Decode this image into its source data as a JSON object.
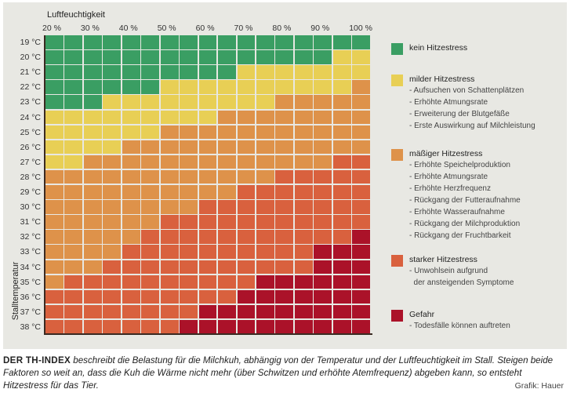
{
  "chart_data": {
    "type": "heatmap",
    "title": "",
    "xlabel": "Luftfeuchtigkeit",
    "ylabel": "Stalltemperatur",
    "x_tick_labels": [
      "20 %",
      "30 %",
      "40 %",
      "50 %",
      "60 %",
      "70 %",
      "80 %",
      "90 %",
      "100 %"
    ],
    "x_values": [
      20,
      25,
      30,
      35,
      40,
      45,
      50,
      55,
      60,
      65,
      70,
      75,
      80,
      85,
      90,
      95,
      100
    ],
    "y_labels": [
      "19 °C",
      "20 °C",
      "21 °C",
      "22 °C",
      "23 °C",
      "24 °C",
      "25 °C",
      "26 °C",
      "27 °C",
      "28 °C",
      "29 °C",
      "30 °C",
      "31 °C",
      "32 °C",
      "33 °C",
      "34 °C",
      "35 °C",
      "36 °C",
      "37 °C",
      "38 °C"
    ],
    "categories_key": {
      "0": "kein Hitzestress",
      "1": "milder Hitzestress",
      "2": "mäßiger Hitzestress",
      "3": "starker Hitzestress",
      "4": "Gefahr"
    },
    "colors": [
      "#3a9e63",
      "#e8cf55",
      "#de924a",
      "#d9613e",
      "#ab1229"
    ],
    "rows": [
      [
        0,
        0,
        0,
        0,
        0,
        0,
        0,
        0,
        0,
        0,
        0,
        0,
        0,
        0,
        0,
        0,
        0
      ],
      [
        0,
        0,
        0,
        0,
        0,
        0,
        0,
        0,
        0,
        0,
        0,
        0,
        0,
        0,
        0,
        1,
        1
      ],
      [
        0,
        0,
        0,
        0,
        0,
        0,
        0,
        0,
        0,
        0,
        1,
        1,
        1,
        1,
        1,
        1,
        1
      ],
      [
        0,
        0,
        0,
        0,
        0,
        0,
        1,
        1,
        1,
        1,
        1,
        1,
        1,
        1,
        1,
        1,
        2
      ],
      [
        0,
        0,
        0,
        1,
        1,
        1,
        1,
        1,
        1,
        1,
        1,
        1,
        2,
        2,
        2,
        2,
        2
      ],
      [
        1,
        1,
        1,
        1,
        1,
        1,
        1,
        1,
        1,
        2,
        2,
        2,
        2,
        2,
        2,
        2,
        2
      ],
      [
        1,
        1,
        1,
        1,
        1,
        1,
        2,
        2,
        2,
        2,
        2,
        2,
        2,
        2,
        2,
        2,
        2
      ],
      [
        1,
        1,
        1,
        1,
        2,
        2,
        2,
        2,
        2,
        2,
        2,
        2,
        2,
        2,
        2,
        2,
        2
      ],
      [
        1,
        1,
        2,
        2,
        2,
        2,
        2,
        2,
        2,
        2,
        2,
        2,
        2,
        2,
        2,
        3,
        3
      ],
      [
        2,
        2,
        2,
        2,
        2,
        2,
        2,
        2,
        2,
        2,
        2,
        2,
        3,
        3,
        3,
        3,
        3
      ],
      [
        2,
        2,
        2,
        2,
        2,
        2,
        2,
        2,
        2,
        2,
        3,
        3,
        3,
        3,
        3,
        3,
        3
      ],
      [
        2,
        2,
        2,
        2,
        2,
        2,
        2,
        2,
        3,
        3,
        3,
        3,
        3,
        3,
        3,
        3,
        3
      ],
      [
        2,
        2,
        2,
        2,
        2,
        2,
        3,
        3,
        3,
        3,
        3,
        3,
        3,
        3,
        3,
        3,
        3
      ],
      [
        2,
        2,
        2,
        2,
        2,
        3,
        3,
        3,
        3,
        3,
        3,
        3,
        3,
        3,
        3,
        3,
        4
      ],
      [
        2,
        2,
        2,
        2,
        3,
        3,
        3,
        3,
        3,
        3,
        3,
        3,
        3,
        3,
        4,
        4,
        4
      ],
      [
        2,
        2,
        2,
        3,
        3,
        3,
        3,
        3,
        3,
        3,
        3,
        3,
        3,
        3,
        4,
        4,
        4
      ],
      [
        2,
        3,
        3,
        3,
        3,
        3,
        3,
        3,
        3,
        3,
        3,
        4,
        4,
        4,
        4,
        4,
        4
      ],
      [
        3,
        3,
        3,
        3,
        3,
        3,
        3,
        3,
        3,
        3,
        4,
        4,
        4,
        4,
        4,
        4,
        4
      ],
      [
        3,
        3,
        3,
        3,
        3,
        3,
        3,
        3,
        4,
        4,
        4,
        4,
        4,
        4,
        4,
        4,
        4
      ],
      [
        3,
        3,
        3,
        3,
        3,
        3,
        3,
        4,
        4,
        4,
        4,
        4,
        4,
        4,
        4,
        4,
        4
      ]
    ],
    "legend": [
      {
        "label": "kein Hitzestress",
        "items": []
      },
      {
        "label": "milder Hitzestress",
        "items": [
          "- Aufsuchen von Schattenplätzen",
          "- Erhöhte Atmungsrate",
          "- Erweiterung der Blutgefäße",
          "- Erste Auswirkung auf Milchleistung"
        ]
      },
      {
        "label": "mäßiger Hitzestress",
        "items": [
          "- Erhöhte Speichelproduktion",
          "- Erhöhte Atmungsrate",
          "- Erhöhte Herzfrequenz",
          "- Rückgang der Futteraufnahme",
          "- Erhöhte Wasseraufnahme",
          "- Rückgang der Milchproduktion",
          "- Rückgang der Fruchtbarkeit"
        ]
      },
      {
        "label": "starker Hitzestress",
        "items": [
          "- Unwohlsein aufgrund",
          "  der ansteigenden Symptome"
        ]
      },
      {
        "label": "Gefahr",
        "items": [
          "- Todesfälle können auftreten"
        ]
      }
    ],
    "legend_position": "right"
  },
  "caption": {
    "lead": "DER TH-INDEX",
    "text": " beschreibt die Belastung für die Milchkuh, abhängig von der Temperatur und der Luftfeuchtigkeit im Stall. Steigen beide Faktoren so weit an, dass die Kuh die Wärme nicht mehr (über Schwitzen und erhöhte Atemfrequenz) abgeben kann, so entsteht Hitzestress für das Tier.",
    "credit": "Grafik: Hauer"
  }
}
